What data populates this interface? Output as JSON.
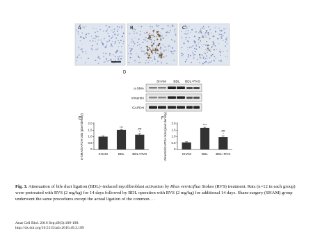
{
  "panels": [
    "A",
    "B",
    "C",
    "D"
  ],
  "blot": {
    "lanes": [
      "SHAM",
      "BDL",
      "BDL+RVS"
    ],
    "rows": [
      "α-SMA",
      "Vimentin",
      "GAPDH"
    ]
  },
  "chart_data": [
    {
      "type": "bar",
      "panel": "E",
      "y_label": "α-SMA/GAPDH ratio (pixel density)",
      "categories": [
        "SHAM",
        "BDL",
        "BDL+RVS"
      ],
      "values": [
        1.0,
        1.52,
        1.15
      ],
      "errors": [
        0.04,
        0.04,
        0.08
      ],
      "vs_sham": [
        null,
        "***",
        "*"
      ],
      "vs_bdl": [
        null,
        null,
        "##"
      ],
      "color": "#333333",
      "ylim": [
        0,
        2.0
      ],
      "yticks": [
        0,
        0.5,
        {
          "value": 1.0,
          "label": "1.0"
        },
        1.5,
        {
          "value": 2.0,
          "label": "2.0"
        }
      ]
    },
    {
      "type": "bar",
      "panel": "F",
      "y_label": "Vimentin/GAPDH ratio (pixel density)",
      "categories": [
        "SHAM",
        "BDL",
        "BDL+RVS"
      ],
      "values": [
        0.55,
        1.68,
        0.97
      ],
      "errors": [
        0.05,
        0.05,
        0.09
      ],
      "vs_sham": [
        null,
        "***",
        "*"
      ],
      "vs_bdl": [
        null,
        null,
        "##"
      ],
      "color": "#333333",
      "ylim": [
        0,
        2.0
      ],
      "yticks": [
        0,
        0.5,
        {
          "value": 1.0,
          "label": "1.0"
        },
        1.5,
        {
          "value": 2.0,
          "label": "2.0"
        }
      ]
    }
  ],
  "caption": {
    "label": "Fig. 3.",
    "text_1": "Attenuation of bile duct ligation (BDL)–induced myofibroblast activation by",
    "species": "Rhus verniciflua",
    "text_2": "Stokes (RVS) treatment. Rats (n=12 in each group) were pretreated with RVS (2 mg/kg) for 14 days followed by BDL operation with RVS (2 mg/kg) for additional 14 days. Sham-surgery (SHAM) group underwent the same procedures except the actual ligation of the common. . ."
  },
  "citation": {
    "journal": "Anat Cell Biol. 2016 Sep;49(3):189-198.",
    "doi": "http://dx.doi.org/10.5115/acb.2016.49.3.189"
  }
}
